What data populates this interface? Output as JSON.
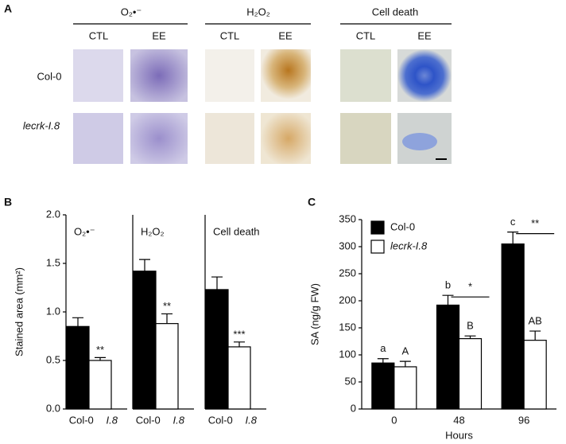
{
  "panel_a": {
    "label": "A",
    "groups": [
      {
        "title": "O₂•⁻",
        "columns": [
          "CTL",
          "EE"
        ]
      },
      {
        "title": "H₂O₂",
        "columns": [
          "CTL",
          "EE"
        ]
      },
      {
        "title": "Cell death",
        "columns": [
          "CTL",
          "EE"
        ]
      }
    ],
    "rows": [
      "Col-0",
      "lecrk-I.8"
    ]
  },
  "chart_data": [
    {
      "type": "bar",
      "panel_label": "B",
      "title": "O₂•⁻",
      "ylabel": "Stained area (mm²)",
      "categories": [
        "Col-0",
        "I.8"
      ],
      "values": [
        0.85,
        0.5
      ],
      "errors": [
        0.09,
        0.03
      ],
      "colors": [
        "#000000",
        "#ffffff"
      ],
      "significance": "**",
      "ylim": [
        0,
        2
      ],
      "yticks": [
        {
          "value": 0,
          "label": "0.0"
        },
        {
          "value": 0.5,
          "label": "0.5"
        },
        {
          "value": 1,
          "label": "1.0"
        },
        {
          "value": 1.5,
          "label": "1.5"
        },
        {
          "value": 2,
          "label": "2.0"
        }
      ]
    },
    {
      "type": "bar",
      "title": "H₂O₂",
      "categories": [
        "Col-0",
        "I.8"
      ],
      "values": [
        1.42,
        0.88
      ],
      "errors": [
        0.12,
        0.1
      ],
      "colors": [
        "#000000",
        "#ffffff"
      ],
      "significance": "**",
      "ylim": [
        0,
        2
      ]
    },
    {
      "type": "bar",
      "title": "Cell death",
      "categories": [
        "Col-0",
        "I.8"
      ],
      "values": [
        1.23,
        0.64
      ],
      "errors": [
        0.13,
        0.05
      ],
      "colors": [
        "#000000",
        "#ffffff"
      ],
      "significance": "***",
      "ylim": [
        0,
        2
      ]
    },
    {
      "type": "bar",
      "panel_label": "C",
      "ylabel": "SA (ng/g FW)",
      "xlabel": "Hours",
      "categories": [
        "0",
        "48",
        "96"
      ],
      "series": [
        {
          "name": "Col-0",
          "color": "#000000",
          "values": [
            85,
            192,
            305
          ],
          "errors": [
            8,
            18,
            22
          ],
          "letters": [
            "a",
            "b",
            "c"
          ]
        },
        {
          "name": "lecrk-I.8",
          "color": "#ffffff",
          "values": [
            78,
            130,
            127
          ],
          "errors": [
            10,
            5,
            17
          ],
          "letters": [
            "A",
            "B",
            "AB"
          ]
        }
      ],
      "significance": [
        null,
        "*",
        "**"
      ],
      "ylim": [
        0,
        350
      ],
      "yticks": [
        0,
        50,
        100,
        150,
        200,
        250,
        300,
        350
      ],
      "legend": "upper left"
    }
  ]
}
